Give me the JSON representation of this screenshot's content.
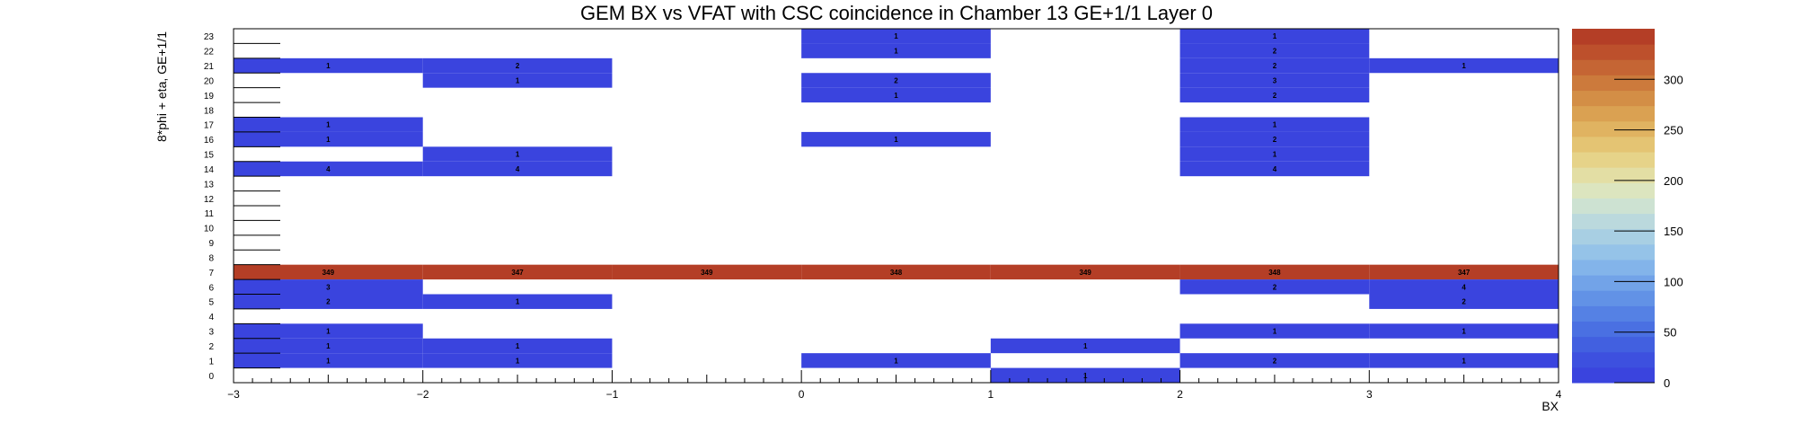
{
  "chart_data": {
    "type": "heatmap",
    "title": "GEM BX vs VFAT with CSC coincidence in Chamber 13 GE+1/1 Layer 0",
    "xlabel": "BX",
    "ylabel": "8*phi + eta, GE+1/1",
    "xlim": [
      -3,
      4
    ],
    "ylim": [
      0,
      24
    ],
    "x_bins": [
      -3,
      -2,
      -1,
      0,
      1,
      2,
      3,
      4
    ],
    "x_ticks": [
      -3,
      -2,
      -1,
      0,
      1,
      2,
      3,
      4
    ],
    "x_tick_labels": [
      "−3",
      "−2",
      "−1",
      "0",
      "1",
      "2",
      "3",
      "4"
    ],
    "y_tick_labels": [
      "0",
      "1",
      "2",
      "3",
      "4",
      "5",
      "6",
      "7",
      "8",
      "9",
      "10",
      "11",
      "12",
      "13",
      "14",
      "15",
      "16",
      "17",
      "18",
      "19",
      "20",
      "21",
      "22",
      "23"
    ],
    "z_range": [
      0,
      350
    ],
    "palette_ticks": [
      0,
      50,
      100,
      150,
      200,
      250,
      300
    ],
    "palette_colors": [
      "#3a44de",
      "#3d50df",
      "#4260e0",
      "#4a70e2",
      "#5581e4",
      "#6292e6",
      "#72a3e8",
      "#83b4ea",
      "#95c3e8",
      "#a8cfe3",
      "#bbd9dd",
      "#cde2d2",
      "#dce5bf",
      "#e3dea4",
      "#e6d389",
      "#e4c473",
      "#e0b361",
      "#daa152",
      "#d38e46",
      "#cc7a3c",
      "#c56534",
      "#bd502c",
      "#b43e26"
    ],
    "cells": [
      {
        "x": -3,
        "y": 21,
        "value": 1
      },
      {
        "x": -2,
        "y": 21,
        "value": 2
      },
      {
        "x": -2,
        "y": 20,
        "value": 1
      },
      {
        "x": 0,
        "y": 23,
        "value": 1
      },
      {
        "x": 0,
        "y": 22,
        "value": 1
      },
      {
        "x": 0,
        "y": 20,
        "value": 2
      },
      {
        "x": 0,
        "y": 19,
        "value": 1
      },
      {
        "x": 2,
        "y": 23,
        "value": 1
      },
      {
        "x": 2,
        "y": 22,
        "value": 2
      },
      {
        "x": 2,
        "y": 21,
        "value": 2
      },
      {
        "x": 2,
        "y": 20,
        "value": 3
      },
      {
        "x": 2,
        "y": 19,
        "value": 2
      },
      {
        "x": 3,
        "y": 21,
        "value": 1
      },
      {
        "x": -3,
        "y": 17,
        "value": 1
      },
      {
        "x": -3,
        "y": 16,
        "value": 1
      },
      {
        "x": 0,
        "y": 16,
        "value": 1
      },
      {
        "x": 2,
        "y": 17,
        "value": 1
      },
      {
        "x": 2,
        "y": 16,
        "value": 2
      },
      {
        "x": -2,
        "y": 15,
        "value": 1
      },
      {
        "x": 2,
        "y": 15,
        "value": 1
      },
      {
        "x": -3,
        "y": 14,
        "value": 4
      },
      {
        "x": -2,
        "y": 14,
        "value": 4
      },
      {
        "x": 2,
        "y": 14,
        "value": 4
      },
      {
        "x": -3,
        "y": 7,
        "value": 349
      },
      {
        "x": -2,
        "y": 7,
        "value": 347
      },
      {
        "x": -1,
        "y": 7,
        "value": 349
      },
      {
        "x": 0,
        "y": 7,
        "value": 348
      },
      {
        "x": 1,
        "y": 7,
        "value": 349
      },
      {
        "x": 2,
        "y": 7,
        "value": 348
      },
      {
        "x": 3,
        "y": 7,
        "value": 347
      },
      {
        "x": -3,
        "y": 6,
        "value": 3
      },
      {
        "x": 2,
        "y": 6,
        "value": 2
      },
      {
        "x": 3,
        "y": 6,
        "value": 4
      },
      {
        "x": -3,
        "y": 5,
        "value": 2
      },
      {
        "x": -2,
        "y": 5,
        "value": 1
      },
      {
        "x": 3,
        "y": 5,
        "value": 2
      },
      {
        "x": -3,
        "y": 3,
        "value": 1
      },
      {
        "x": 2,
        "y": 3,
        "value": 1
      },
      {
        "x": 3,
        "y": 3,
        "value": 1
      },
      {
        "x": -3,
        "y": 2,
        "value": 1
      },
      {
        "x": -2,
        "y": 2,
        "value": 1
      },
      {
        "x": 1,
        "y": 2,
        "value": 1
      },
      {
        "x": -3,
        "y": 1,
        "value": 1
      },
      {
        "x": -2,
        "y": 1,
        "value": 1
      },
      {
        "x": 0,
        "y": 1,
        "value": 1
      },
      {
        "x": 2,
        "y": 1,
        "value": 2
      },
      {
        "x": 3,
        "y": 1,
        "value": 1
      },
      {
        "x": 1,
        "y": 0,
        "value": 1
      }
    ]
  }
}
